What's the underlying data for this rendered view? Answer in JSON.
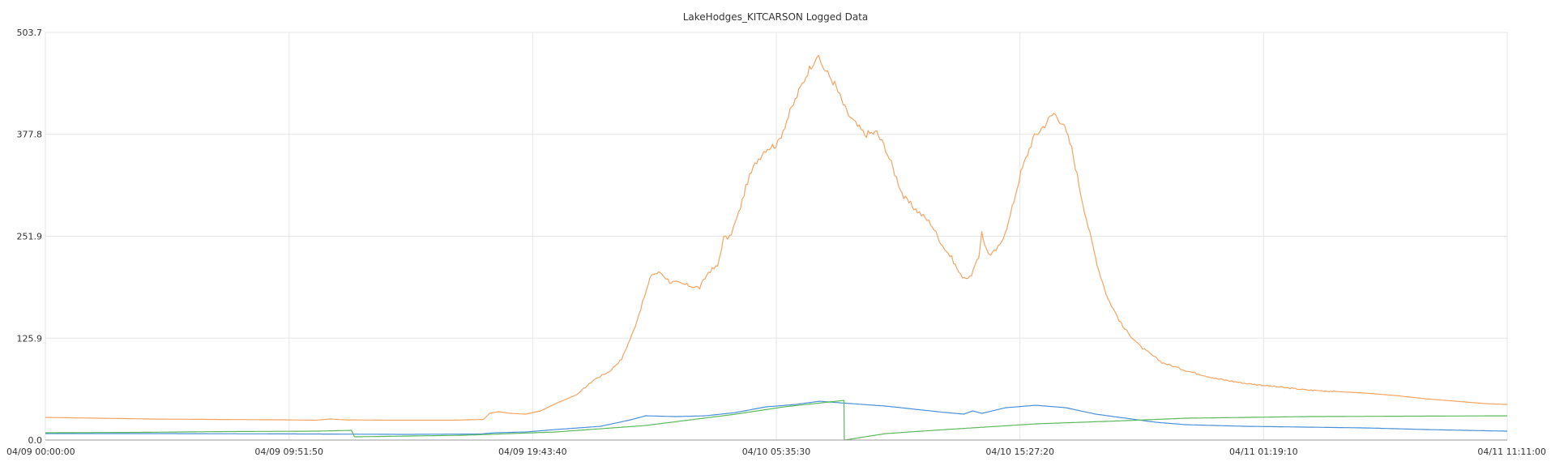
{
  "chart_data": {
    "type": "line",
    "title": "LakeHodges_KITCARSON Logged Data",
    "xlabel": "",
    "ylabel": "",
    "ylim": [
      0,
      503.7
    ],
    "xlim": [
      "04/09 00:00:00",
      "04/11 11:11:00"
    ],
    "grid": true,
    "legend": "none",
    "y_ticks": [
      "0.0",
      "125.9",
      "251.9",
      "377.8",
      "503.7"
    ],
    "x_ticks": [
      "04/09 00:00:00",
      "04/09 09:51:50",
      "04/09 19:43:40",
      "04/10 05:35:30",
      "04/10 15:27:20",
      "04/11 01:19:10",
      "04/11 11:11:00"
    ],
    "x_unit": "minutes since 04/09 00:00:00",
    "series": [
      {
        "color": "#f4a460",
        "points": [
          [
            0,
            28
          ],
          [
            180,
            27
          ],
          [
            360,
            26
          ],
          [
            560,
            25.5
          ],
          [
            800,
            25
          ],
          [
            900,
            24.5
          ],
          [
            950,
            26
          ],
          [
            1000,
            25
          ],
          [
            1150,
            24.5
          ],
          [
            1350,
            24.5
          ],
          [
            1460,
            25.5
          ],
          [
            1480,
            33
          ],
          [
            1510,
            35
          ],
          [
            1550,
            33
          ],
          [
            1600,
            32
          ],
          [
            1650,
            36
          ],
          [
            1700,
            45
          ],
          [
            1770,
            56
          ],
          [
            1830,
            75
          ],
          [
            1880,
            85
          ],
          [
            1920,
            100
          ],
          [
            1960,
            135
          ],
          [
            1990,
            170
          ],
          [
            2020,
            205
          ],
          [
            2050,
            207
          ],
          [
            2080,
            196
          ],
          [
            2120,
            193
          ],
          [
            2180,
            188
          ],
          [
            2210,
            208
          ],
          [
            2240,
            215
          ],
          [
            2260,
            250
          ],
          [
            2280,
            250
          ],
          [
            2310,
            280
          ],
          [
            2340,
            320
          ],
          [
            2370,
            345
          ],
          [
            2400,
            360
          ],
          [
            2440,
            366
          ],
          [
            2470,
            395
          ],
          [
            2510,
            430
          ],
          [
            2540,
            455
          ],
          [
            2570,
            475
          ],
          [
            2590,
            462
          ],
          [
            2630,
            440
          ],
          [
            2670,
            405
          ],
          [
            2700,
            390
          ],
          [
            2730,
            378
          ],
          [
            2770,
            380
          ],
          [
            2800,
            360
          ],
          [
            2830,
            330
          ],
          [
            2860,
            300
          ],
          [
            2900,
            285
          ],
          [
            2950,
            268
          ],
          [
            2990,
            240
          ],
          [
            3020,
            225
          ],
          [
            3050,
            203
          ],
          [
            3080,
            200
          ],
          [
            3110,
            225
          ],
          [
            3120,
            259
          ],
          [
            3130,
            240
          ],
          [
            3150,
            228
          ],
          [
            3180,
            240
          ],
          [
            3210,
            270
          ],
          [
            3250,
            330
          ],
          [
            3290,
            372
          ],
          [
            3330,
            390
          ],
          [
            3360,
            404
          ],
          [
            3390,
            392
          ],
          [
            3420,
            360
          ],
          [
            3450,
            305
          ],
          [
            3480,
            255
          ],
          [
            3510,
            210
          ],
          [
            3540,
            175
          ],
          [
            3590,
            140
          ],
          [
            3650,
            115
          ],
          [
            3720,
            96
          ],
          [
            3800,
            86
          ],
          [
            3900,
            76
          ],
          [
            4000,
            70
          ],
          [
            4100,
            66
          ],
          [
            4200,
            62
          ],
          [
            4300,
            60
          ],
          [
            4400,
            58
          ],
          [
            4500,
            55
          ],
          [
            4600,
            51
          ],
          [
            4700,
            48
          ],
          [
            4800,
            45
          ],
          [
            4871,
            44
          ]
        ]
      },
      {
        "color": "#4a90d9",
        "points": [
          [
            0,
            8
          ],
          [
            400,
            8
          ],
          [
            900,
            7.5
          ],
          [
            1200,
            7
          ],
          [
            1450,
            7.5
          ],
          [
            1500,
            9
          ],
          [
            1600,
            10
          ],
          [
            1700,
            13
          ],
          [
            1850,
            17
          ],
          [
            1950,
            25
          ],
          [
            2000,
            30
          ],
          [
            2100,
            29
          ],
          [
            2200,
            30
          ],
          [
            2300,
            34
          ],
          [
            2400,
            41
          ],
          [
            2500,
            44
          ],
          [
            2580,
            48
          ],
          [
            2650,
            46
          ],
          [
            2800,
            42
          ],
          [
            2900,
            38
          ],
          [
            3000,
            34
          ],
          [
            3060,
            32
          ],
          [
            3090,
            36
          ],
          [
            3120,
            33
          ],
          [
            3200,
            40
          ],
          [
            3300,
            43
          ],
          [
            3400,
            40
          ],
          [
            3500,
            32
          ],
          [
            3600,
            27
          ],
          [
            3700,
            22
          ],
          [
            3800,
            19
          ],
          [
            4000,
            17
          ],
          [
            4200,
            16
          ],
          [
            4400,
            15
          ],
          [
            4600,
            13
          ],
          [
            4871,
            11
          ]
        ]
      },
      {
        "color": "#5cb85c",
        "points": [
          [
            0,
            9
          ],
          [
            300,
            9.5
          ],
          [
            600,
            10.5
          ],
          [
            900,
            11
          ],
          [
            1020,
            12
          ],
          [
            1030,
            4
          ],
          [
            1400,
            6
          ],
          [
            1700,
            10
          ],
          [
            2000,
            18
          ],
          [
            2300,
            32
          ],
          [
            2460,
            41
          ],
          [
            2661,
            49
          ],
          [
            2662,
            0
          ],
          [
            2800,
            8
          ],
          [
            3000,
            13
          ],
          [
            3300,
            20
          ],
          [
            3600,
            24
          ],
          [
            3800,
            27
          ],
          [
            4200,
            29
          ],
          [
            4871,
            30
          ]
        ]
      }
    ]
  }
}
